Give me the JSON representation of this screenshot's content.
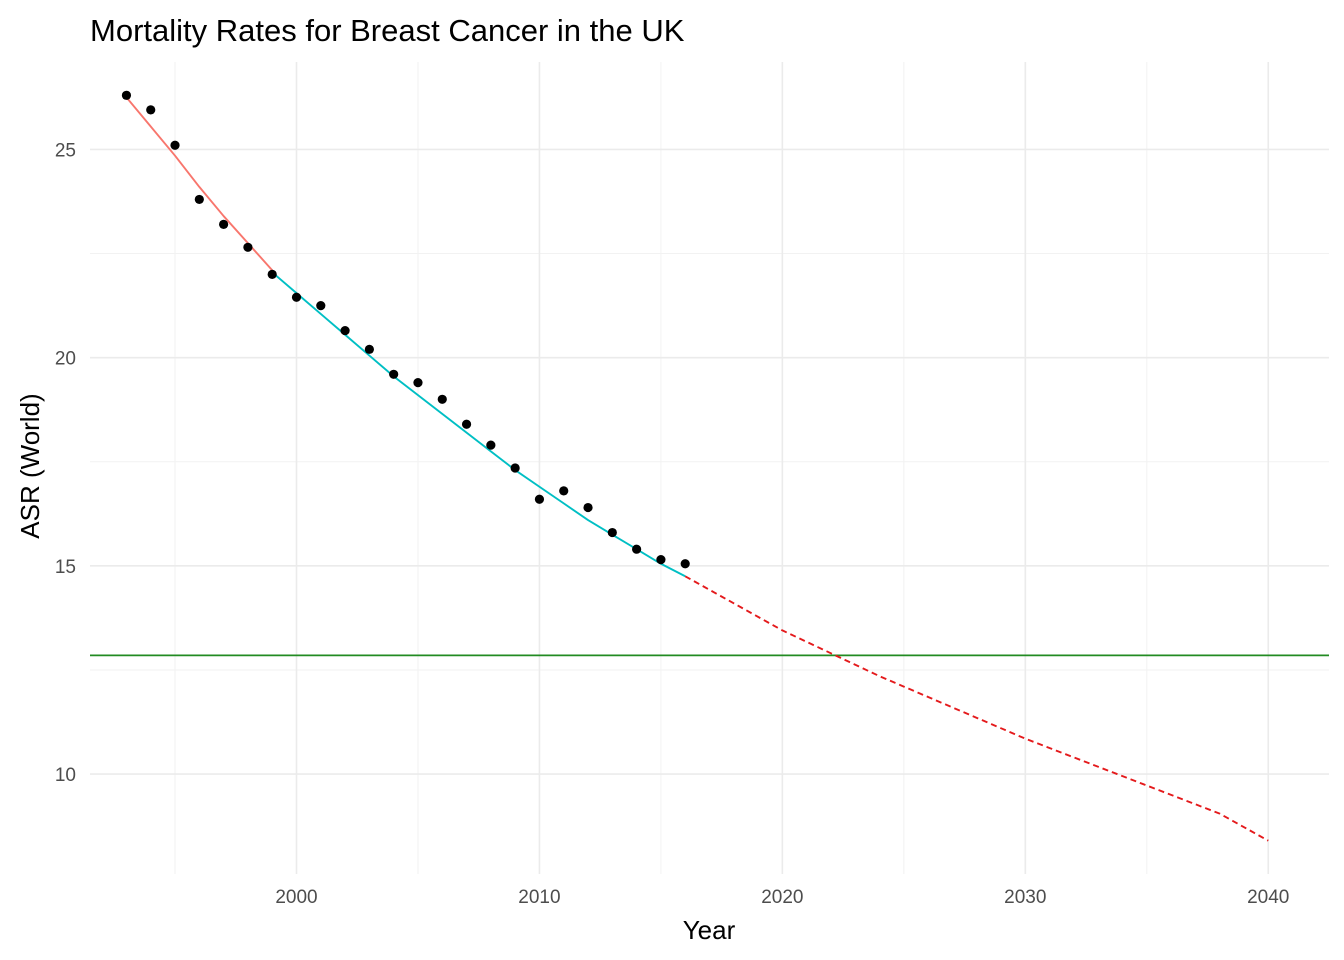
{
  "chart_data": {
    "type": "line",
    "title": "Mortality Rates for Breast Cancer in the UK",
    "xlabel": "Year",
    "ylabel": "ASR (World)",
    "xlim": [
      1991.5,
      2042.5
    ],
    "ylim": [
      7.6,
      27.1
    ],
    "x_ticks": [
      2000,
      2010,
      2020,
      2030,
      2040
    ],
    "x_minor_ticks": [
      1995,
      2005,
      2015,
      2025,
      2035
    ],
    "y_ticks": [
      10,
      15,
      20,
      25
    ],
    "y_minor_ticks": [
      12.5,
      17.5,
      22.5
    ],
    "grid": true,
    "legend": "none",
    "observed_points": {
      "color": "#000000",
      "x": [
        1993,
        1994,
        1995,
        1996,
        1997,
        1998,
        1999,
        2000,
        2001,
        2002,
        2003,
        2004,
        2005,
        2006,
        2007,
        2008,
        2009,
        2010,
        2011,
        2012,
        2013,
        2014,
        2015,
        2016
      ],
      "y": [
        26.3,
        25.95,
        25.1,
        23.8,
        23.2,
        22.65,
        22.0,
        21.45,
        21.25,
        20.65,
        20.2,
        19.6,
        19.4,
        19.0,
        18.4,
        17.9,
        17.35,
        16.6,
        16.8,
        16.4,
        15.8,
        15.4,
        15.15,
        15.05
      ]
    },
    "series": [
      {
        "style": "solid",
        "color": "#f8766d",
        "x": [
          1993,
          1994,
          1995,
          1996,
          1997,
          1998,
          1999
        ],
        "y": [
          26.25,
          25.55,
          24.85,
          24.1,
          23.4,
          22.75,
          22.1
        ]
      },
      {
        "style": "solid",
        "color": "#00bfc4",
        "x": [
          1999,
          2000,
          2001,
          2002,
          2003,
          2004,
          2005,
          2006,
          2007,
          2008,
          2009,
          2010,
          2011,
          2012,
          2013,
          2014,
          2015,
          2016
        ],
        "y": [
          22.05,
          21.55,
          21.05,
          20.55,
          20.05,
          19.55,
          19.1,
          18.65,
          18.2,
          17.75,
          17.3,
          16.9,
          16.5,
          16.1,
          15.75,
          15.4,
          15.05,
          14.75
        ]
      },
      {
        "style": "dashed",
        "color": "#e41a1c",
        "x": [
          2016,
          2018,
          2020,
          2022,
          2024,
          2026,
          2028,
          2030,
          2032,
          2034,
          2036,
          2038,
          2040
        ],
        "y": [
          14.75,
          14.1,
          13.45,
          12.9,
          12.35,
          11.85,
          11.35,
          10.85,
          10.4,
          9.95,
          9.5,
          9.05,
          8.4
        ]
      }
    ],
    "reference_line": {
      "type": "horizontal",
      "color": "#228b22",
      "y": 12.85
    }
  }
}
